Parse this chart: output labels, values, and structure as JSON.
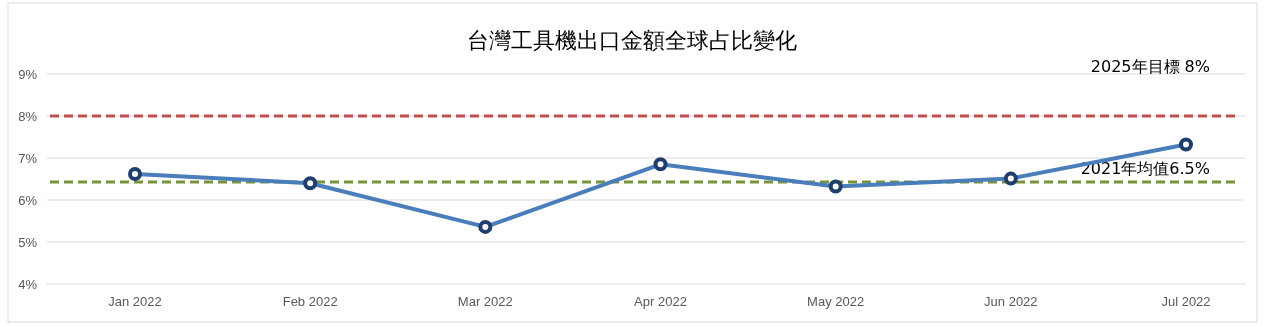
{
  "chart_data": {
    "type": "line",
    "title": "台灣工具機出口金額全球占比變化",
    "categories": [
      "Jan 2022",
      "Feb 2022",
      "Mar 2022",
      "Apr 2022",
      "May 2022",
      "Jun 2022",
      "Jul 2022"
    ],
    "series": [
      {
        "color": "#4a7ebb",
        "values": [
          6.62,
          6.4,
          5.36,
          6.85,
          6.32,
          6.51,
          7.32
        ]
      }
    ],
    "ylim": [
      4,
      9
    ],
    "yticks": [
      {
        "value": 4,
        "label": "4%"
      },
      {
        "value": 5,
        "label": "5%"
      },
      {
        "value": 6,
        "label": "6%"
      },
      {
        "value": 7,
        "label": "7%"
      },
      {
        "value": 8,
        "label": "8%"
      },
      {
        "value": 9,
        "label": "9%"
      }
    ],
    "grid": "y",
    "marker": "circle",
    "line_style": "solid",
    "ref_lines": [
      {
        "axis": "y",
        "value": 8,
        "label": "2025年目標 8%",
        "color": "#c0504d",
        "line_style": "dashed"
      },
      {
        "axis": "y",
        "value": 6.43,
        "label": "2021年均值6.5%",
        "color": "#77933c",
        "line_style": "dashed"
      }
    ]
  }
}
